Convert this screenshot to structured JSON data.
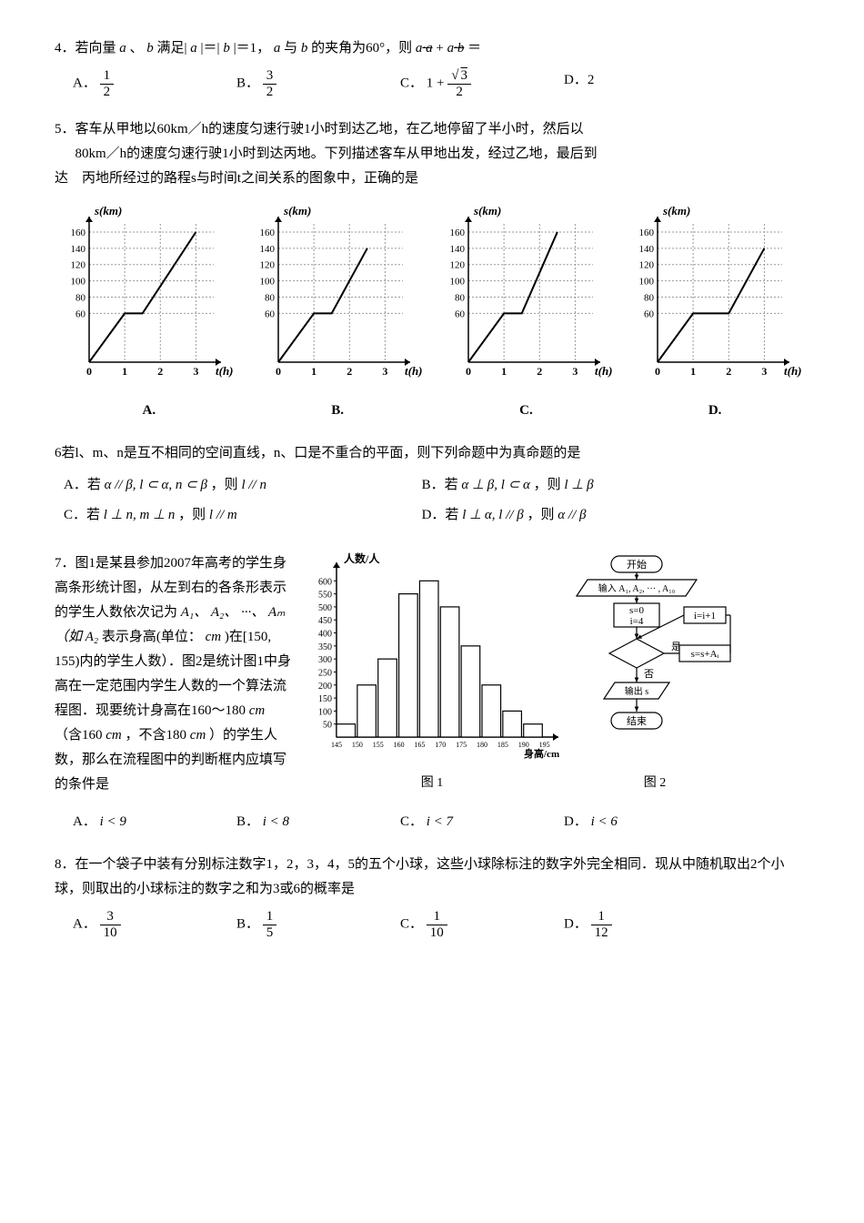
{
  "q4": {
    "text_parts": [
      "4．若向量",
      "、",
      "满足|",
      "|＝|",
      "|＝1，",
      "与",
      "的夹角为60°，则",
      "+",
      "＝"
    ],
    "var_a": "a",
    "var_b": "b",
    "tail1": "·a",
    "tail2": "·b",
    "opts": {
      "A_label": "A．",
      "A_frac_num": "1",
      "A_frac_den": "2",
      "B_label": "B．",
      "B_frac_num": "3",
      "B_frac_den": "2",
      "C_label": "C．",
      "C_lead": "1 + ",
      "C_frac_num_sqrt": "3",
      "C_frac_den": "2",
      "D_label": "D．2"
    }
  },
  "q5": {
    "line1": "5．客车从甲地以60km／h的速度匀速行驶1小时到达乙地，在乙地停留了半小时，然后以",
    "line2": "80km／h的速度匀速行驶1小时到达丙地。下列描述客车从甲地出发，经过乙地，最后到",
    "line3": "达　丙地所经过的路程s与时间t之间关系的图象中，正确的是",
    "chart": {
      "ylabel": "s(km)",
      "xlabel": "t(h)",
      "yticks": [
        60,
        80,
        100,
        120,
        140,
        160
      ],
      "xticks": [
        0,
        1,
        2,
        3
      ],
      "ylim": [
        0,
        170
      ],
      "xlim": [
        0,
        3.5
      ],
      "grid_color": "#9a9a9a",
      "axis_color": "#000000",
      "line_color": "#000000",
      "plots": {
        "A": [
          [
            0,
            0
          ],
          [
            1,
            60
          ],
          [
            1.5,
            60
          ],
          [
            3,
            160
          ]
        ],
        "B": [
          [
            0,
            0
          ],
          [
            1,
            60
          ],
          [
            1.5,
            60
          ],
          [
            2.5,
            140
          ]
        ],
        "C": [
          [
            0,
            0
          ],
          [
            1,
            60
          ],
          [
            1.5,
            60
          ],
          [
            2.5,
            160
          ]
        ],
        "D": [
          [
            0,
            0
          ],
          [
            1,
            60
          ],
          [
            2,
            60
          ],
          [
            3,
            140
          ]
        ]
      }
    },
    "labels": {
      "A": "A.",
      "B": "B.",
      "C": "C.",
      "D": "D."
    }
  },
  "q6": {
    "text": "6若l、m、n是互不相同的空间直线，n、口是不重合的平面，则下列命题中为真命题的是",
    "A_pre": "A．若",
    "A_cond": "α // β, l ⊂ α, n ⊂ β",
    "A_mid": "，则",
    "A_res": "l // n",
    "B_pre": "B．若",
    "B_cond": "α ⊥ β, l ⊂ α",
    "B_mid": "，则",
    "B_res": "l ⊥ β",
    "C_pre": "C．若",
    "C_cond": "l ⊥ n, m ⊥ n",
    "C_mid": "，则",
    "C_res": "l // m",
    "D_pre": "D．若",
    "D_cond": "l ⊥ α, l // β",
    "D_mid": "，则",
    "D_res": "α // β"
  },
  "q7": {
    "p1": "7．图1是某县参加2007年高考的学生身高条形统计图，从左到右的各条形表示的学生人数依次记为",
    "seq": "A₁、 A₂、 ···、 Aₘ（如 A₂",
    "p2": "表示身高(单位：",
    "unit1": "cm",
    "p2b": ")在[150, 155)内的学生人数）．图2是统计图1中身高在一定范围内学生人数的一个算法流程图．现要统计身高在160～180",
    "unit2": "cm",
    "p2c": "（含160",
    "unit3": "cm",
    "p2d": "，不含180",
    "unit4": "cm",
    "p2e": "）的学生人数，那么在流程图中的判断框内应填写的条件是",
    "bar": {
      "ylabel": "人数/人",
      "xlabel": "身高/cm",
      "yticks": [
        50,
        100,
        150,
        200,
        250,
        300,
        350,
        400,
        450,
        500,
        550,
        600
      ],
      "xcats": [
        "145",
        "150",
        "155",
        "160",
        "165",
        "170",
        "175",
        "180",
        "185",
        "190",
        "195"
      ],
      "values": [
        50,
        200,
        300,
        550,
        600,
        500,
        350,
        200,
        100,
        50
      ],
      "bar_color": "#ffffff",
      "border_color": "#000000",
      "axis_color": "#000000"
    },
    "flow": {
      "start": "开始",
      "input": "输入 A₁, A₂, ··· , A₁₀",
      "init": "s=0\ni=4",
      "inc": "i=i+1",
      "yes": "是",
      "no": "否",
      "acc": "s=s+Aᵢ",
      "out": "输出 s",
      "end": "结束",
      "cap1": "图 1",
      "cap2": "图 2"
    },
    "opts": {
      "A_lbl": "A．",
      "A": "i < 9",
      "B_lbl": "B．",
      "B": "i < 8",
      "C_lbl": "C．",
      "C": "i < 7",
      "D_lbl": "D．",
      "D": "i < 6"
    }
  },
  "q8": {
    "line1": "8．在一个袋子中装有分别标注数字1，2，3，4，5的五个小球，这些小球除标注的数字外完全相同．现从中随机取出2个小球，则取出的小球标注的数字之和为3或6的概率是",
    "opts": {
      "A_lbl": "A．",
      "A_num": "3",
      "A_den": "10",
      "B_lbl": "B．",
      "B_num": "1",
      "B_den": "5",
      "C_lbl": "C．",
      "C_num": "1",
      "C_den": "10",
      "D_lbl": "D．",
      "D_num": "1",
      "D_den": "12"
    }
  }
}
